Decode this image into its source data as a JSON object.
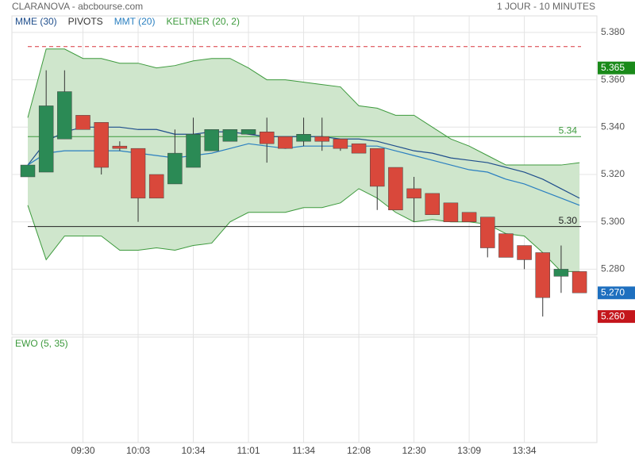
{
  "header": {
    "title": "CLARANOVA - abcbourse.com",
    "period": "1 JOUR - 10 MINUTES"
  },
  "chart_data": [
    {
      "type": "candlestick",
      "categories": [
        null,
        null,
        null,
        "09:30",
        null,
        null,
        "10:03",
        null,
        null,
        "10:34",
        null,
        null,
        "11:01",
        null,
        null,
        "11:34",
        null,
        null,
        "12:08",
        null,
        null,
        "12:30",
        null,
        null,
        "13:09",
        null,
        null,
        "13:34",
        null,
        null,
        null
      ],
      "open": [
        5.319,
        5.321,
        5.335,
        5.345,
        5.342,
        5.332,
        5.331,
        5.32,
        5.316,
        5.323,
        5.33,
        5.334,
        5.337,
        5.338,
        5.336,
        5.334,
        5.336,
        5.335,
        5.333,
        5.331,
        5.323,
        5.314,
        5.312,
        5.308,
        5.304,
        5.302,
        5.295,
        5.29,
        5.287,
        5.277,
        5.279
      ],
      "high": [
        5.324,
        5.364,
        5.364,
        5.345,
        5.342,
        5.334,
        5.331,
        5.32,
        5.339,
        5.344,
        5.339,
        5.339,
        5.339,
        5.344,
        5.336,
        5.344,
        5.344,
        5.335,
        5.333,
        5.331,
        5.323,
        5.319,
        5.312,
        5.308,
        5.304,
        5.302,
        5.295,
        5.29,
        5.287,
        5.29,
        5.279
      ],
      "low": [
        5.319,
        5.321,
        5.335,
        5.339,
        5.32,
        5.33,
        5.3,
        5.31,
        5.316,
        5.323,
        5.33,
        5.334,
        5.337,
        5.325,
        5.331,
        5.332,
        5.33,
        5.33,
        5.329,
        5.305,
        5.305,
        5.3,
        5.303,
        5.3,
        5.3,
        5.285,
        5.285,
        5.28,
        5.26,
        5.27,
        5.27
      ],
      "close": [
        5.324,
        5.349,
        5.355,
        5.339,
        5.323,
        5.331,
        5.31,
        5.31,
        5.329,
        5.337,
        5.339,
        5.339,
        5.339,
        5.333,
        5.331,
        5.337,
        5.334,
        5.331,
        5.329,
        5.315,
        5.305,
        5.31,
        5.303,
        5.3,
        5.3,
        5.289,
        5.285,
        5.284,
        5.268,
        5.28,
        5.27
      ],
      "up_color": "#2b8a55",
      "down_color": "#d9483b",
      "band": {
        "name": "KELTNER (20, 2)",
        "color": "#3d9a3d",
        "fill": "#cfe6cc",
        "upper": [
          5.344,
          5.373,
          5.373,
          5.369,
          5.369,
          5.367,
          5.367,
          5.365,
          5.366,
          5.368,
          5.369,
          5.369,
          5.365,
          5.36,
          5.36,
          5.359,
          5.358,
          5.357,
          5.349,
          5.348,
          5.345,
          5.345,
          5.34,
          5.335,
          5.332,
          5.328,
          5.324,
          5.324,
          5.324,
          5.324,
          5.325
        ],
        "lower": [
          5.307,
          5.284,
          5.294,
          5.294,
          5.294,
          5.288,
          5.288,
          5.289,
          5.288,
          5.29,
          5.291,
          5.3,
          5.304,
          5.304,
          5.304,
          5.306,
          5.306,
          5.308,
          5.314,
          5.31,
          5.304,
          5.3,
          5.301,
          5.3,
          5.3,
          5.299,
          5.295,
          5.294,
          5.287,
          5.279,
          5.279
        ]
      },
      "series": [
        {
          "name": "MME (30)",
          "color": "#1f4e8c",
          "values": [
            5.324,
            5.334,
            5.338,
            5.34,
            5.34,
            5.34,
            5.339,
            5.339,
            5.337,
            5.337,
            5.338,
            5.338,
            5.337,
            5.336,
            5.336,
            5.336,
            5.336,
            5.335,
            5.335,
            5.334,
            5.332,
            5.33,
            5.329,
            5.327,
            5.326,
            5.325,
            5.323,
            5.321,
            5.318,
            5.314,
            5.31
          ]
        },
        {
          "name": "MMT (20)",
          "color": "#2a7fc0",
          "values": [
            5.324,
            5.329,
            5.33,
            5.33,
            5.33,
            5.33,
            5.329,
            5.328,
            5.327,
            5.328,
            5.329,
            5.331,
            5.333,
            5.332,
            5.331,
            5.332,
            5.332,
            5.332,
            5.332,
            5.332,
            5.33,
            5.328,
            5.326,
            5.324,
            5.322,
            5.321,
            5.318,
            5.316,
            5.313,
            5.31,
            5.307
          ]
        }
      ],
      "pivots": {
        "name": "PIVOTS",
        "color": "#333333",
        "lines": [
          {
            "value": 5.374,
            "color": "#d9363e",
            "dashed": true
          },
          {
            "value": 5.336,
            "label": "5.34",
            "color": "#3d9a3d"
          },
          {
            "value": 5.298,
            "label": "5.30",
            "color": "#222222"
          }
        ]
      },
      "price_tags": [
        {
          "value": 5.365,
          "label": "5.365",
          "color": "#1a8a1a"
        },
        {
          "value": 5.27,
          "label": "5.270",
          "color": "#1e6fbf"
        },
        {
          "value": 5.26,
          "label": "5.260",
          "color": "#c4161c"
        }
      ],
      "ylim": [
        5.253,
        5.387
      ],
      "yticks": [
        {
          "value": 5.38,
          "label": "5.380"
        },
        {
          "value": 5.36,
          "label": "5.360"
        },
        {
          "value": 5.34,
          "label": "5.340"
        },
        {
          "value": 5.32,
          "label": "5.320"
        },
        {
          "value": 5.3,
          "label": "5.300"
        },
        {
          "value": 5.28,
          "label": "5.280"
        }
      ],
      "grid": true
    },
    {
      "type": "line",
      "title": "EWO (5, 35)",
      "color": "#3d9a3d"
    }
  ]
}
